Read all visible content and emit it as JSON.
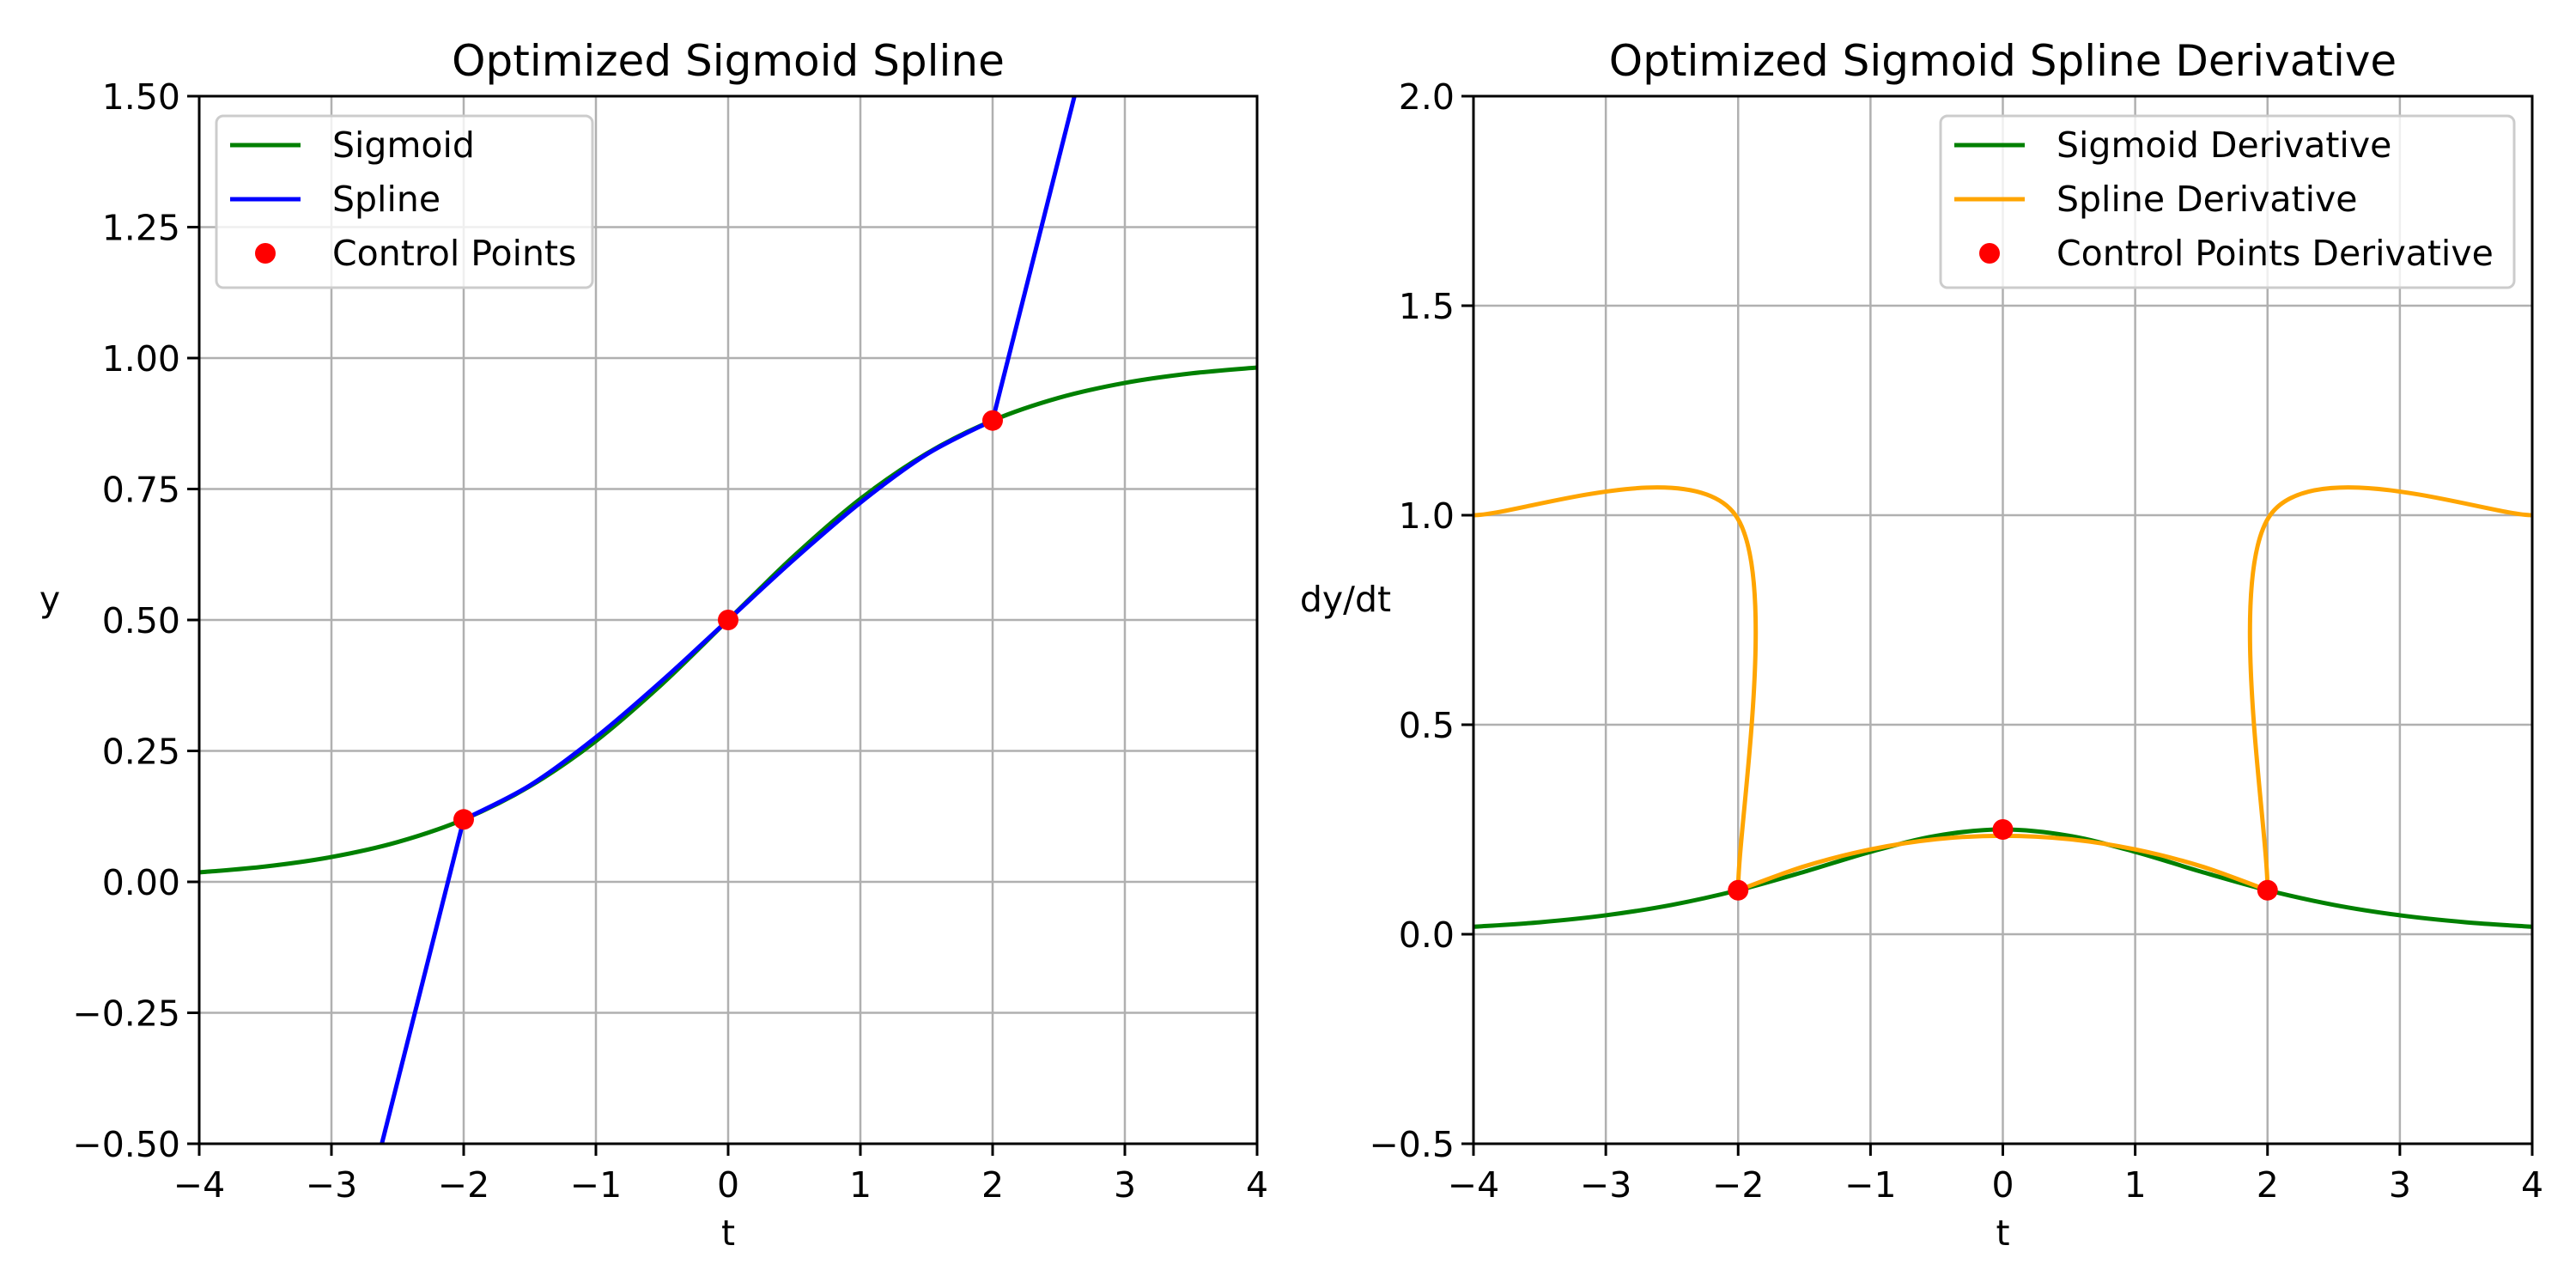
{
  "chart_data": [
    {
      "type": "line",
      "title": "Optimized Sigmoid Spline",
      "xlabel": "t",
      "ylabel": "y",
      "xlim": [
        -4,
        4
      ],
      "ylim": [
        -0.5,
        1.5
      ],
      "xticks": [
        -4,
        -3,
        -2,
        -1,
        0,
        1,
        2,
        3,
        4
      ],
      "xtick_labels": [
        "−4",
        "−3",
        "−2",
        "−1",
        "0",
        "1",
        "2",
        "3",
        "4"
      ],
      "yticks": [
        -0.5,
        -0.25,
        0,
        0.25,
        0.5,
        0.75,
        1.0,
        1.25,
        1.5
      ],
      "ytick_labels": [
        "−0.50",
        "−0.25",
        "0.00",
        "0.25",
        "0.50",
        "0.75",
        "1.00",
        "1.25",
        "1.50"
      ],
      "grid": true,
      "legend_position": "top-left",
      "series": [
        {
          "name": "Sigmoid",
          "kind": "line",
          "color": "#008000",
          "segments": [
            [
              [
                -4,
                0.018
              ],
              [
                -3.5,
                0.0293
              ],
              [
                -3,
                0.0474
              ],
              [
                -2.5,
                0.0759
              ],
              [
                -2,
                0.1192
              ],
              [
                -1.5,
                0.1824
              ],
              [
                -1,
                0.2689
              ],
              [
                -0.5,
                0.3775
              ],
              [
                0,
                0.5
              ],
              [
                0.5,
                0.6225
              ],
              [
                1,
                0.7311
              ],
              [
                1.5,
                0.8176
              ],
              [
                2,
                0.8808
              ],
              [
                2.5,
                0.9241
              ],
              [
                3,
                0.9526
              ],
              [
                3.5,
                0.9707
              ],
              [
                4,
                0.982
              ]
            ]
          ]
        },
        {
          "name": "Spline",
          "kind": "line",
          "color": "#0000ff",
          "segments": [
            [
              [
                -4,
                -1.881
              ],
              [
                -2,
                0.119
              ]
            ],
            [
              [
                -2,
                0.119
              ],
              [
                -1.5,
                0.184
              ],
              [
                -1,
                0.276
              ],
              [
                -0.5,
                0.384
              ],
              [
                0,
                0.5
              ],
              [
                0.5,
                0.616
              ],
              [
                1,
                0.724
              ],
              [
                1.5,
                0.816
              ],
              [
                2,
                0.881
              ]
            ],
            [
              [
                2,
                0.881
              ],
              [
                4,
                2.881
              ]
            ]
          ]
        },
        {
          "name": "Control Points",
          "kind": "points",
          "color": "#ff0000",
          "points": [
            [
              -2,
              0.1192
            ],
            [
              0,
              0.5
            ],
            [
              2,
              0.8808
            ]
          ]
        }
      ]
    },
    {
      "type": "line",
      "title": "Optimized Sigmoid Spline Derivative",
      "xlabel": "t",
      "ylabel": "dy/dt",
      "xlim": [
        -4,
        4
      ],
      "ylim": [
        -0.5,
        2.0
      ],
      "xticks": [
        -4,
        -3,
        -2,
        -1,
        0,
        1,
        2,
        3,
        4
      ],
      "xtick_labels": [
        "−4",
        "−3",
        "−2",
        "−1",
        "0",
        "1",
        "2",
        "3",
        "4"
      ],
      "yticks": [
        -0.5,
        0,
        0.5,
        1.0,
        1.5,
        2.0
      ],
      "ytick_labels": [
        "−0.5",
        "0.0",
        "0.5",
        "1.0",
        "1.5",
        "2.0"
      ],
      "grid": true,
      "legend_position": "top-right",
      "series": [
        {
          "name": "Sigmoid Derivative",
          "kind": "line",
          "color": "#008000",
          "segments": [
            [
              [
                -4,
                0.0177
              ],
              [
                -3.5,
                0.0285
              ],
              [
                -3,
                0.0452
              ],
              [
                -2.5,
                0.0701
              ],
              [
                -2,
                0.105
              ],
              [
                -1.5,
                0.1491
              ],
              [
                -1,
                0.1966
              ],
              [
                -0.5,
                0.235
              ],
              [
                0,
                0.25
              ],
              [
                0.5,
                0.235
              ],
              [
                1,
                0.1966
              ],
              [
                1.5,
                0.1491
              ],
              [
                2,
                0.105
              ],
              [
                2.5,
                0.0701
              ],
              [
                3,
                0.0452
              ],
              [
                3.5,
                0.0285
              ],
              [
                4,
                0.0177
              ]
            ]
          ]
        },
        {
          "name": "Spline Derivative",
          "kind": "line",
          "color": "#ffa500",
          "segments": [
            [
              [
                -4,
                1.0
              ],
              [
                -2.02,
                1.0
              ],
              [
                -2,
                0.105
              ]
            ],
            [
              [
                -2,
                0.105
              ],
              [
                -1.5,
                0.162
              ],
              [
                -1,
                0.2025
              ],
              [
                -0.5,
                0.227
              ],
              [
                0,
                0.235
              ],
              [
                0.5,
                0.227
              ],
              [
                1,
                0.2025
              ],
              [
                1.5,
                0.162
              ],
              [
                2,
                0.105
              ]
            ],
            [
              [
                2,
                0.105
              ],
              [
                2.02,
                1.0
              ],
              [
                4,
                1.0
              ]
            ]
          ]
        },
        {
          "name": "Control Points Derivative",
          "kind": "points",
          "color": "#ff0000",
          "points": [
            [
              -2,
              0.105
            ],
            [
              0,
              0.25
            ],
            [
              2,
              0.105
            ]
          ]
        }
      ]
    }
  ]
}
